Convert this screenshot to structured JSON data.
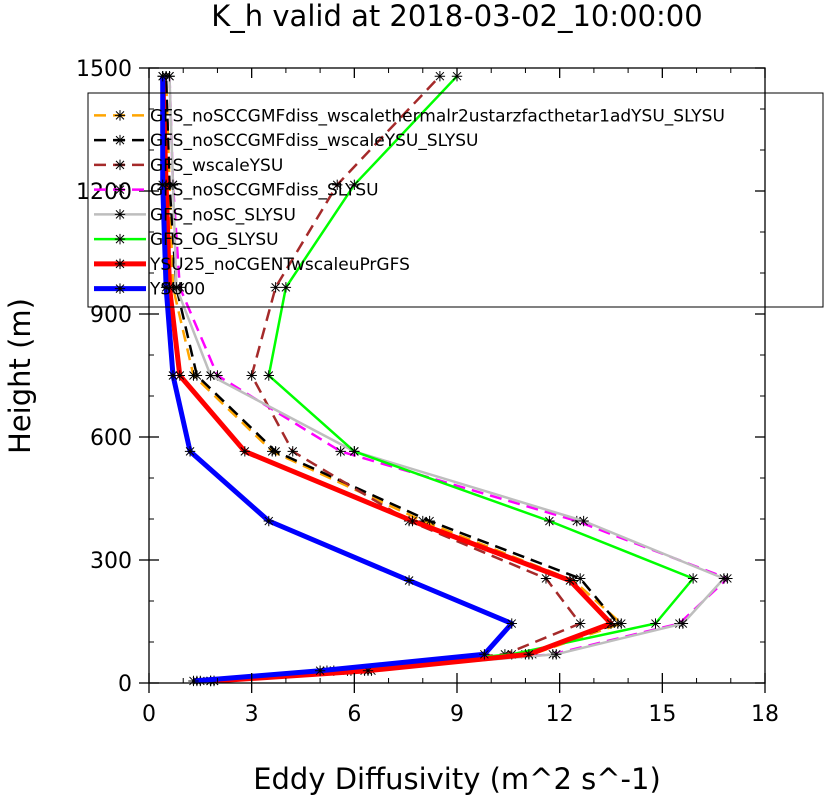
{
  "chart_data": {
    "type": "line",
    "title": "K_h valid at 2018-03-02_10:00:00",
    "xlabel": "Eddy Diffusivity (m^2 s^-1)",
    "ylabel": "Height (m)",
    "xlim": [
      0,
      18
    ],
    "ylim": [
      0,
      1500
    ],
    "xticks": [
      0,
      3,
      6,
      9,
      12,
      15,
      18
    ],
    "yticks": [
      0,
      300,
      600,
      900,
      1200,
      1500
    ],
    "grid": false,
    "legend_position": "top-right",
    "series": [
      {
        "name": "GFS_noSCCGMFdiss_wscalethermalr2ustarzfacthetar1adYSU_SLYSU",
        "color": "#ffa500",
        "dash": "dashed",
        "width": 2.5,
        "x": [
          1.9,
          6.5,
          11.2,
          13.8,
          12.4,
          8.0,
          3.6,
          1.3,
          0.7,
          0.6,
          0.5
        ],
        "y": [
          5,
          30,
          70,
          145,
          250,
          395,
          565,
          750,
          965,
          1215,
          1480
        ]
      },
      {
        "name": "GFS_noSCCGMFdiss_wscaleYSU_SLYSU",
        "color": "#000000",
        "dash": "dashed",
        "width": 2.5,
        "x": [
          1.8,
          6.3,
          11.0,
          13.7,
          12.6,
          8.2,
          3.7,
          1.4,
          0.8,
          0.6,
          0.5
        ],
        "y": [
          5,
          30,
          70,
          145,
          255,
          395,
          565,
          750,
          965,
          1215,
          1480
        ]
      },
      {
        "name": "GFS_wscaleYSU",
        "color": "#a52a2a",
        "dash": "dashed",
        "width": 2.5,
        "x": [
          1.4,
          5.2,
          10.4,
          12.6,
          11.6,
          7.6,
          4.2,
          3.0,
          3.7,
          5.5,
          8.5
        ],
        "y": [
          5,
          30,
          70,
          145,
          255,
          395,
          565,
          750,
          965,
          1215,
          1480
        ]
      },
      {
        "name": "GFS_noSCCGMFdiss_SLYSU",
        "color": "#ff00ff",
        "dash": "dashed",
        "width": 2.5,
        "x": [
          1.8,
          5.8,
          11.8,
          15.5,
          16.9,
          12.5,
          5.6,
          2.0,
          0.9,
          0.7,
          0.6
        ],
        "y": [
          5,
          30,
          70,
          145,
          255,
          395,
          565,
          750,
          965,
          1215,
          1480
        ]
      },
      {
        "name": "GFS_noSC_SLYSU",
        "color": "#bebebe",
        "dash": "solid",
        "width": 2.5,
        "x": [
          1.8,
          5.9,
          11.9,
          15.6,
          16.8,
          12.7,
          6.0,
          1.8,
          0.8,
          0.7,
          0.6
        ],
        "y": [
          5,
          30,
          70,
          145,
          255,
          395,
          565,
          750,
          965,
          1215,
          1480
        ]
      },
      {
        "name": "GFS_OG_SLYSU",
        "color": "#00ff00",
        "dash": "solid",
        "width": 2.5,
        "x": [
          1.5,
          5.4,
          10.6,
          14.8,
          15.9,
          11.7,
          6.0,
          3.5,
          4.0,
          6.0,
          9.0
        ],
        "y": [
          5,
          30,
          70,
          145,
          255,
          395,
          565,
          750,
          965,
          1215,
          1480
        ]
      },
      {
        "name": "YSU25_noCGENTwscaleuPrGFS",
        "color": "#ff0000",
        "dash": "solid",
        "width": 5,
        "x": [
          1.9,
          6.4,
          11.1,
          13.5,
          12.3,
          7.7,
          2.8,
          0.9,
          0.6,
          0.5,
          0.4
        ],
        "y": [
          5,
          30,
          70,
          145,
          250,
          395,
          565,
          750,
          965,
          1215,
          1480
        ]
      },
      {
        "name": "YSU00",
        "color": "#0000ff",
        "dash": "solid",
        "width": 5,
        "x": [
          1.3,
          5.0,
          9.8,
          10.6,
          7.6,
          3.5,
          1.2,
          0.7,
          0.5,
          0.4,
          0.4
        ],
        "y": [
          5,
          30,
          70,
          145,
          250,
          395,
          565,
          750,
          965,
          1215,
          1480
        ]
      }
    ]
  }
}
